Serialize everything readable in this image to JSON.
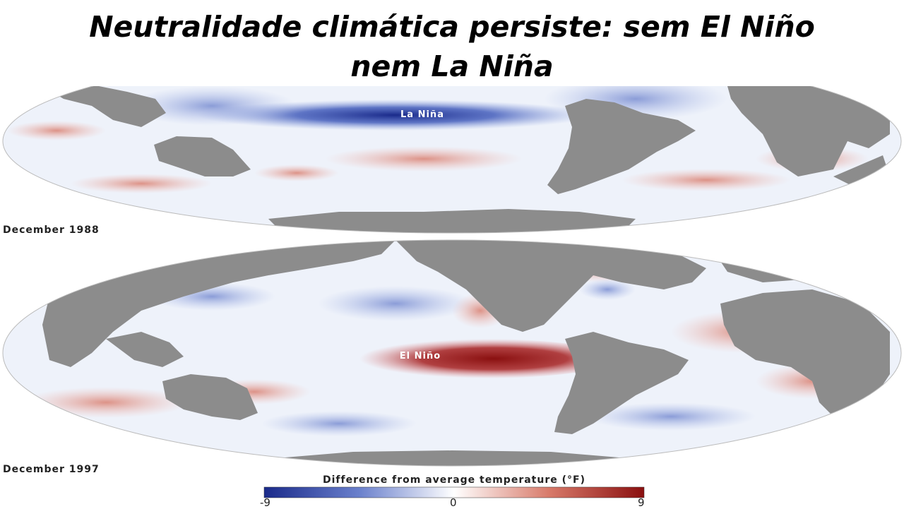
{
  "headline": {
    "line1": "Neutralidade climática persiste: sem El Niño",
    "line2": "nem La Niña"
  },
  "maps": [
    {
      "date": "December 1988",
      "event_label": "La Niña",
      "anomaly": "cold"
    },
    {
      "date": "December 1997",
      "event_label": "El Niño",
      "anomaly": "warm"
    }
  ],
  "legend": {
    "title": "Difference from average temperature (°F)",
    "min_label": "-9",
    "mid_label": "0",
    "max_label": "9",
    "cold_color": "#1a2a8a",
    "neutral_color": "#ffffff",
    "warm_color": "#8a1010"
  },
  "colors": {
    "land": "#8c8c8c",
    "ocean": "#eef2fa"
  }
}
